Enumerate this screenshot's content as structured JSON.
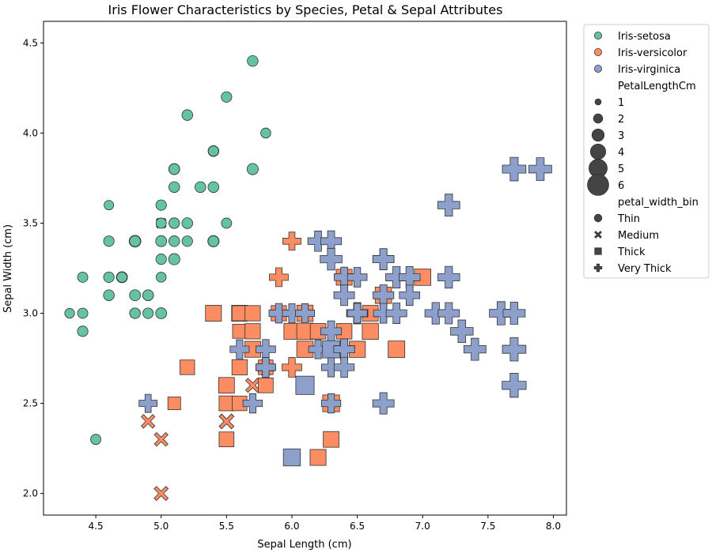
{
  "chart_data": {
    "type": "scatter",
    "title": "Iris Flower Characteristics by Species, Petal & Sepal Attributes",
    "xlabel": "Sepal Length (cm)",
    "ylabel": "Sepal Width (cm)",
    "xlim": [
      4.1,
      8.1
    ],
    "ylim": [
      1.88,
      4.62
    ],
    "xticks": [
      "4.5",
      "5.0",
      "5.5",
      "6.0",
      "6.5",
      "7.0",
      "7.5",
      "8.0"
    ],
    "yticks": [
      "2.0",
      "2.5",
      "3.0",
      "3.5",
      "4.0",
      "4.5"
    ],
    "grid": false,
    "legend_position": "outside-right",
    "legend": {
      "hue_entries": [
        {
          "label": "Iris-setosa",
          "color": "#66c2a5"
        },
        {
          "label": "Iris-versicolor",
          "color": "#fc8d62"
        },
        {
          "label": "Iris-virginica",
          "color": "#8da0cb"
        }
      ],
      "size_title": "PetalLengthCm",
      "size_entries": [
        "1",
        "2",
        "3",
        "4",
        "5",
        "6"
      ],
      "style_title": "petal_width_bin",
      "style_entries": [
        {
          "label": "Thin",
          "marker": "circle"
        },
        {
          "label": "Medium",
          "marker": "x"
        },
        {
          "label": "Thick",
          "marker": "square"
        },
        {
          "label": "Very Thick",
          "marker": "plus"
        }
      ]
    },
    "series": [
      {
        "name": "Iris-setosa",
        "color": "#66c2a5",
        "points": [
          {
            "x": 5.7,
            "y": 4.4,
            "m": "circle",
            "s": 1.5
          },
          {
            "x": 5.5,
            "y": 4.2,
            "m": "circle",
            "s": 1.4
          },
          {
            "x": 5.2,
            "y": 4.1,
            "m": "circle",
            "s": 1.5
          },
          {
            "x": 5.8,
            "y": 4.0,
            "m": "circle",
            "s": 1.2
          },
          {
            "x": 5.4,
            "y": 3.9,
            "m": "circle",
            "s": 1.5
          },
          {
            "x": 5.4,
            "y": 3.9,
            "m": "circle",
            "s": 1.3
          },
          {
            "x": 5.1,
            "y": 3.8,
            "m": "circle",
            "s": 1.6
          },
          {
            "x": 5.1,
            "y": 3.8,
            "m": "circle",
            "s": 1.5
          },
          {
            "x": 5.7,
            "y": 3.8,
            "m": "circle",
            "s": 1.7
          },
          {
            "x": 5.1,
            "y": 3.7,
            "m": "circle",
            "s": 1.5
          },
          {
            "x": 5.3,
            "y": 3.7,
            "m": "circle",
            "s": 1.5
          },
          {
            "x": 5.4,
            "y": 3.7,
            "m": "circle",
            "s": 1.5
          },
          {
            "x": 4.6,
            "y": 3.6,
            "m": "circle",
            "s": 1.0
          },
          {
            "x": 5.0,
            "y": 3.6,
            "m": "circle",
            "s": 1.4
          },
          {
            "x": 5.0,
            "y": 3.5,
            "m": "x",
            "s": 1.6
          },
          {
            "x": 5.0,
            "y": 3.5,
            "m": "circle",
            "s": 1.3
          },
          {
            "x": 5.1,
            "y": 3.5,
            "m": "circle",
            "s": 1.4
          },
          {
            "x": 5.1,
            "y": 3.5,
            "m": "circle",
            "s": 1.4
          },
          {
            "x": 5.2,
            "y": 3.5,
            "m": "circle",
            "s": 1.5
          },
          {
            "x": 5.5,
            "y": 3.5,
            "m": "circle",
            "s": 1.3
          },
          {
            "x": 4.6,
            "y": 3.4,
            "m": "circle",
            "s": 1.4
          },
          {
            "x": 4.8,
            "y": 3.4,
            "m": "circle",
            "s": 1.9
          },
          {
            "x": 4.8,
            "y": 3.4,
            "m": "circle",
            "s": 1.6
          },
          {
            "x": 5.0,
            "y": 3.4,
            "m": "circle",
            "s": 1.5
          },
          {
            "x": 5.0,
            "y": 3.4,
            "m": "circle",
            "s": 1.6
          },
          {
            "x": 5.1,
            "y": 3.4,
            "m": "circle",
            "s": 1.5
          },
          {
            "x": 5.2,
            "y": 3.4,
            "m": "circle",
            "s": 1.4
          },
          {
            "x": 5.4,
            "y": 3.4,
            "m": "circle",
            "s": 1.7
          },
          {
            "x": 5.4,
            "y": 3.4,
            "m": "circle",
            "s": 1.5
          },
          {
            "x": 5.0,
            "y": 3.3,
            "m": "circle",
            "s": 1.4
          },
          {
            "x": 5.1,
            "y": 3.3,
            "m": "circle",
            "s": 1.7
          },
          {
            "x": 4.4,
            "y": 3.2,
            "m": "circle",
            "s": 1.3
          },
          {
            "x": 4.6,
            "y": 3.2,
            "m": "circle",
            "s": 1.4
          },
          {
            "x": 4.7,
            "y": 3.2,
            "m": "circle",
            "s": 1.6
          },
          {
            "x": 4.7,
            "y": 3.2,
            "m": "circle",
            "s": 1.3
          },
          {
            "x": 5.0,
            "y": 3.2,
            "m": "circle",
            "s": 1.2
          },
          {
            "x": 4.6,
            "y": 3.1,
            "m": "circle",
            "s": 1.5
          },
          {
            "x": 4.8,
            "y": 3.1,
            "m": "circle",
            "s": 1.6
          },
          {
            "x": 4.9,
            "y": 3.1,
            "m": "circle",
            "s": 1.5
          },
          {
            "x": 4.9,
            "y": 3.1,
            "m": "circle",
            "s": 1.5
          },
          {
            "x": 4.3,
            "y": 3.0,
            "m": "circle",
            "s": 1.1
          },
          {
            "x": 4.4,
            "y": 3.0,
            "m": "circle",
            "s": 1.3
          },
          {
            "x": 4.8,
            "y": 3.0,
            "m": "circle",
            "s": 1.4
          },
          {
            "x": 4.8,
            "y": 3.0,
            "m": "circle",
            "s": 1.4
          },
          {
            "x": 4.9,
            "y": 3.0,
            "m": "circle",
            "s": 1.4
          },
          {
            "x": 5.0,
            "y": 3.0,
            "m": "circle",
            "s": 1.6
          },
          {
            "x": 4.4,
            "y": 2.9,
            "m": "circle",
            "s": 1.4
          },
          {
            "x": 4.5,
            "y": 2.3,
            "m": "circle",
            "s": 1.3
          }
        ]
      },
      {
        "name": "Iris-versicolor",
        "color": "#fc8d62",
        "points": [
          {
            "x": 6.0,
            "y": 3.4,
            "m": "plus",
            "s": 4.5
          },
          {
            "x": 5.9,
            "y": 3.2,
            "m": "plus",
            "s": 4.8
          },
          {
            "x": 7.0,
            "y": 3.2,
            "m": "square",
            "s": 4.7
          },
          {
            "x": 6.4,
            "y": 3.2,
            "m": "square",
            "s": 4.5
          },
          {
            "x": 6.7,
            "y": 3.1,
            "m": "square",
            "s": 4.4
          },
          {
            "x": 6.9,
            "y": 3.1,
            "m": "plus",
            "s": 4.9
          },
          {
            "x": 6.7,
            "y": 3.1,
            "m": "square",
            "s": 4.7
          },
          {
            "x": 5.4,
            "y": 3.0,
            "m": "square",
            "s": 4.5
          },
          {
            "x": 5.6,
            "y": 3.0,
            "m": "square",
            "s": 4.5
          },
          {
            "x": 5.6,
            "y": 3.0,
            "m": "square",
            "s": 4.1
          },
          {
            "x": 5.7,
            "y": 3.0,
            "m": "square",
            "s": 4.2
          },
          {
            "x": 6.1,
            "y": 3.0,
            "m": "square",
            "s": 4.6
          },
          {
            "x": 6.6,
            "y": 3.0,
            "m": "square",
            "s": 4.4
          },
          {
            "x": 6.7,
            "y": 3.0,
            "m": "plus",
            "s": 5.0
          },
          {
            "x": 5.9,
            "y": 3.0,
            "m": "square",
            "s": 4.2
          },
          {
            "x": 5.6,
            "y": 2.9,
            "m": "square",
            "s": 3.6
          },
          {
            "x": 5.7,
            "y": 2.9,
            "m": "square",
            "s": 4.2
          },
          {
            "x": 6.0,
            "y": 2.9,
            "m": "square",
            "s": 4.5
          },
          {
            "x": 6.1,
            "y": 2.9,
            "m": "square",
            "s": 4.7
          },
          {
            "x": 6.2,
            "y": 2.9,
            "m": "square",
            "s": 4.3
          },
          {
            "x": 6.4,
            "y": 2.9,
            "m": "square",
            "s": 4.3
          },
          {
            "x": 6.6,
            "y": 2.9,
            "m": "square",
            "s": 4.6
          },
          {
            "x": 5.7,
            "y": 2.8,
            "m": "square",
            "s": 4.1
          },
          {
            "x": 5.7,
            "y": 2.8,
            "m": "square",
            "s": 4.5
          },
          {
            "x": 6.1,
            "y": 2.8,
            "m": "square",
            "s": 4.0
          },
          {
            "x": 6.1,
            "y": 2.8,
            "m": "square",
            "s": 4.7
          },
          {
            "x": 6.5,
            "y": 2.8,
            "m": "square",
            "s": 4.6
          },
          {
            "x": 6.8,
            "y": 2.8,
            "m": "square",
            "s": 4.8
          },
          {
            "x": 5.2,
            "y": 2.7,
            "m": "square",
            "s": 3.9
          },
          {
            "x": 5.6,
            "y": 2.7,
            "m": "square",
            "s": 4.2
          },
          {
            "x": 5.8,
            "y": 2.7,
            "m": "circle",
            "s": 4.1
          },
          {
            "x": 5.8,
            "y": 2.7,
            "m": "square",
            "s": 3.9
          },
          {
            "x": 6.0,
            "y": 2.7,
            "m": "plus",
            "s": 5.1
          },
          {
            "x": 5.5,
            "y": 2.6,
            "m": "square",
            "s": 4.4
          },
          {
            "x": 5.7,
            "y": 2.6,
            "m": "x",
            "s": 3.5
          },
          {
            "x": 5.8,
            "y": 2.6,
            "m": "square",
            "s": 4.0
          },
          {
            "x": 5.1,
            "y": 2.5,
            "m": "square",
            "s": 3.0
          },
          {
            "x": 5.5,
            "y": 2.5,
            "m": "square",
            "s": 4.0
          },
          {
            "x": 5.6,
            "y": 2.5,
            "m": "square",
            "s": 3.9
          },
          {
            "x": 6.3,
            "y": 2.5,
            "m": "square",
            "s": 4.9
          },
          {
            "x": 4.9,
            "y": 2.4,
            "m": "x",
            "s": 3.3
          },
          {
            "x": 5.5,
            "y": 2.4,
            "m": "x",
            "s": 3.8
          },
          {
            "x": 5.5,
            "y": 2.4,
            "m": "x",
            "s": 3.7
          },
          {
            "x": 5.0,
            "y": 2.3,
            "m": "x",
            "s": 3.3
          },
          {
            "x": 5.5,
            "y": 2.3,
            "m": "square",
            "s": 4.0
          },
          {
            "x": 6.3,
            "y": 2.3,
            "m": "square",
            "s": 4.4
          },
          {
            "x": 6.0,
            "y": 2.2,
            "m": "square",
            "s": 4.0
          },
          {
            "x": 6.2,
            "y": 2.2,
            "m": "square",
            "s": 4.5
          },
          {
            "x": 5.0,
            "y": 2.0,
            "m": "x",
            "s": 3.5
          }
        ]
      },
      {
        "name": "Iris-virginica",
        "color": "#8da0cb",
        "points": [
          {
            "x": 7.7,
            "y": 3.8,
            "m": "plus",
            "s": 6.7
          },
          {
            "x": 7.9,
            "y": 3.8,
            "m": "plus",
            "s": 6.4
          },
          {
            "x": 7.2,
            "y": 3.6,
            "m": "plus",
            "s": 6.1
          },
          {
            "x": 6.2,
            "y": 3.4,
            "m": "plus",
            "s": 5.4
          },
          {
            "x": 6.3,
            "y": 3.4,
            "m": "plus",
            "s": 5.6
          },
          {
            "x": 6.3,
            "y": 3.3,
            "m": "plus",
            "s": 6.0
          },
          {
            "x": 6.7,
            "y": 3.3,
            "m": "plus",
            "s": 5.7
          },
          {
            "x": 6.7,
            "y": 3.3,
            "m": "plus",
            "s": 5.7
          },
          {
            "x": 6.4,
            "y": 3.2,
            "m": "plus",
            "s": 5.3
          },
          {
            "x": 6.5,
            "y": 3.2,
            "m": "plus",
            "s": 5.1
          },
          {
            "x": 6.8,
            "y": 3.2,
            "m": "plus",
            "s": 5.9
          },
          {
            "x": 6.9,
            "y": 3.2,
            "m": "plus",
            "s": 5.7
          },
          {
            "x": 7.2,
            "y": 3.2,
            "m": "plus",
            "s": 6.0
          },
          {
            "x": 6.4,
            "y": 3.1,
            "m": "plus",
            "s": 5.5
          },
          {
            "x": 6.7,
            "y": 3.1,
            "m": "plus",
            "s": 5.6
          },
          {
            "x": 6.9,
            "y": 3.1,
            "m": "plus",
            "s": 5.1
          },
          {
            "x": 6.9,
            "y": 3.1,
            "m": "plus",
            "s": 5.4
          },
          {
            "x": 5.9,
            "y": 3.0,
            "m": "plus",
            "s": 5.1
          },
          {
            "x": 6.0,
            "y": 3.0,
            "m": "plus",
            "s": 4.8
          },
          {
            "x": 6.1,
            "y": 3.0,
            "m": "plus",
            "s": 4.9
          },
          {
            "x": 6.5,
            "y": 3.0,
            "m": "plus",
            "s": 5.8
          },
          {
            "x": 6.5,
            "y": 3.0,
            "m": "plus",
            "s": 5.5
          },
          {
            "x": 6.5,
            "y": 3.0,
            "m": "plus",
            "s": 5.2
          },
          {
            "x": 6.7,
            "y": 3.0,
            "m": "plus",
            "s": 5.2
          },
          {
            "x": 6.8,
            "y": 3.0,
            "m": "plus",
            "s": 5.5
          },
          {
            "x": 7.1,
            "y": 3.0,
            "m": "plus",
            "s": 5.9
          },
          {
            "x": 7.2,
            "y": 3.0,
            "m": "plus",
            "s": 5.8
          },
          {
            "x": 7.6,
            "y": 3.0,
            "m": "plus",
            "s": 6.6
          },
          {
            "x": 7.7,
            "y": 3.0,
            "m": "plus",
            "s": 6.1
          },
          {
            "x": 6.3,
            "y": 2.9,
            "m": "plus",
            "s": 5.6
          },
          {
            "x": 7.3,
            "y": 2.9,
            "m": "plus",
            "s": 6.3
          },
          {
            "x": 5.6,
            "y": 2.8,
            "m": "plus",
            "s": 4.9
          },
          {
            "x": 5.8,
            "y": 2.8,
            "m": "plus",
            "s": 5.1
          },
          {
            "x": 6.2,
            "y": 2.8,
            "m": "plus",
            "s": 4.8
          },
          {
            "x": 6.3,
            "y": 2.8,
            "m": "square",
            "s": 5.1
          },
          {
            "x": 6.4,
            "y": 2.8,
            "m": "plus",
            "s": 5.6
          },
          {
            "x": 6.4,
            "y": 2.8,
            "m": "plus",
            "s": 5.6
          },
          {
            "x": 7.4,
            "y": 2.8,
            "m": "plus",
            "s": 6.1
          },
          {
            "x": 7.7,
            "y": 2.8,
            "m": "plus",
            "s": 6.7
          },
          {
            "x": 5.8,
            "y": 2.7,
            "m": "plus",
            "s": 5.1
          },
          {
            "x": 5.8,
            "y": 2.7,
            "m": "plus",
            "s": 5.1
          },
          {
            "x": 6.3,
            "y": 2.7,
            "m": "plus",
            "s": 4.9
          },
          {
            "x": 6.4,
            "y": 2.7,
            "m": "plus",
            "s": 5.3
          },
          {
            "x": 6.1,
            "y": 2.6,
            "m": "square",
            "s": 5.6
          },
          {
            "x": 7.7,
            "y": 2.6,
            "m": "plus",
            "s": 6.9
          },
          {
            "x": 4.9,
            "y": 2.5,
            "m": "plus",
            "s": 4.5
          },
          {
            "x": 5.7,
            "y": 2.5,
            "m": "plus",
            "s": 5.0
          },
          {
            "x": 6.3,
            "y": 2.5,
            "m": "plus",
            "s": 5.0
          },
          {
            "x": 6.7,
            "y": 2.5,
            "m": "plus",
            "s": 5.8
          },
          {
            "x": 6.0,
            "y": 2.2,
            "m": "square",
            "s": 5.0
          }
        ]
      }
    ]
  }
}
